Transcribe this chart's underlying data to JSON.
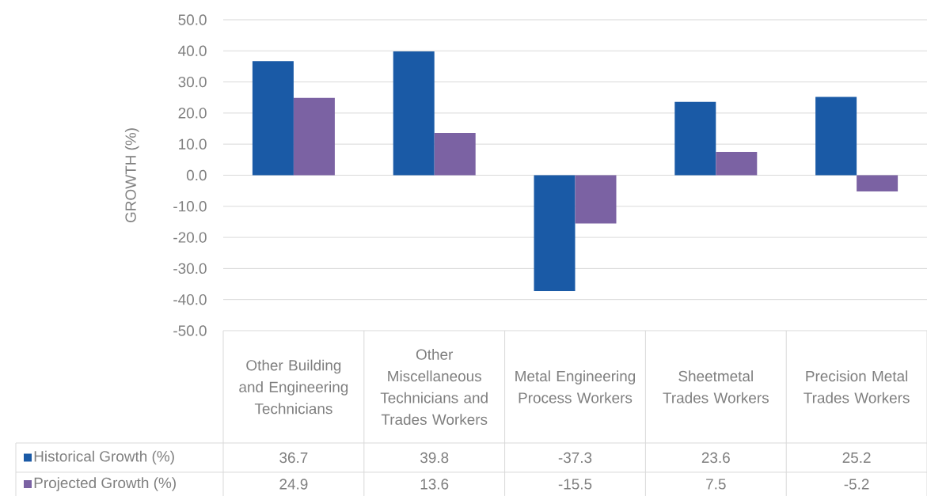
{
  "chart_data": {
    "type": "bar",
    "ylabel": "GROWTH (%)",
    "categories": [
      "Other Building and Engineering Technicians",
      "Other Miscellaneous Technicians and Trades Workers",
      "Metal Engineering Process Workers",
      "Sheetmetal Trades Workers",
      "Precision Metal Trades Workers"
    ],
    "series": [
      {
        "name": "Historical Growth (%)",
        "color": "#1a5aa6",
        "values": [
          36.7,
          39.8,
          -37.3,
          23.6,
          25.2
        ]
      },
      {
        "name": "Projected Growth (%)",
        "color": "#7b62a3",
        "values": [
          24.9,
          13.6,
          -15.5,
          7.5,
          -5.2
        ]
      }
    ],
    "ylim": [
      -50,
      50
    ],
    "yticks": [
      {
        "value": -50,
        "label": "-50.0"
      },
      {
        "value": -40,
        "label": "-40.0"
      },
      {
        "value": -30,
        "label": "-30.0"
      },
      {
        "value": -20,
        "label": "-20.0"
      },
      {
        "value": -10,
        "label": "-10.0"
      },
      {
        "value": 0,
        "label": "0.0"
      },
      {
        "value": 10,
        "label": "10.0"
      },
      {
        "value": 20,
        "label": "20.0"
      },
      {
        "value": 30,
        "label": "30.0"
      },
      {
        "value": 40,
        "label": "40.0"
      },
      {
        "value": 50,
        "label": "50.0"
      }
    ],
    "grid": "y",
    "data_labels": true,
    "legend": "bottom"
  }
}
